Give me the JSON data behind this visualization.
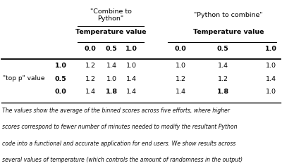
{
  "c2p_header": "\"Combine to\nPython\"",
  "p2c_header": "\"Python to combine\"",
  "temp_label": "Temperature value",
  "temp_cols": [
    "0.0",
    "0.5",
    "1.0"
  ],
  "row_group_label": "\"top p\" value",
  "rows": [
    {
      "top_p": "1.0",
      "c2p": [
        "1.2",
        "1.4",
        "1.0"
      ],
      "p2c": [
        "1.0",
        "1.4",
        "1.0"
      ]
    },
    {
      "top_p": "0.5",
      "c2p": [
        "1.2",
        "1.0",
        "1.4"
      ],
      "p2c": [
        "1.2",
        "1.2",
        "1.4"
      ]
    },
    {
      "top_p": "0.0",
      "c2p": [
        "1.4",
        "1.8",
        "1.4"
      ],
      "p2c": [
        "1.4",
        "1.8",
        "1.0"
      ]
    }
  ],
  "bold_c2p": [
    [
      2,
      1
    ]
  ],
  "bold_p2c": [
    [
      2,
      1
    ]
  ],
  "caption": "The values show the average of the binned scores across five efforts, where higher\nscores correspond to fewer number of minutes needed to modify the resultant Python\ncode into a functional and accurate application for end users. We show results across\nseveral values of temperature (which controls the amount of randomness in the output)\nand \"top p\" (which controls how much responses can deviate from the input’s topic). The\noptimal result for each approach is in bold.",
  "bg_color": "#ffffff"
}
